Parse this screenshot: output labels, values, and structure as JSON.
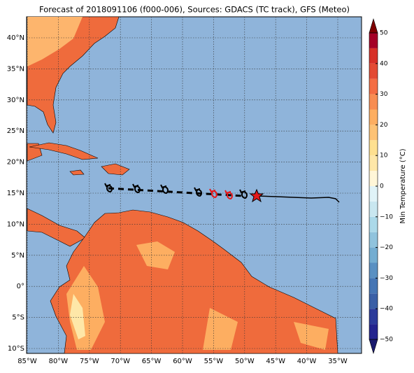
{
  "title": "Forecast of 2018091106 (f000-006), Sources: GDACS (TC track), GFS (Meteo)",
  "map": {
    "lon_ticks": [
      {
        "value": -85,
        "label": "85°W"
      },
      {
        "value": -80,
        "label": "80°W"
      },
      {
        "value": -75,
        "label": "75°W"
      },
      {
        "value": -70,
        "label": "70°W"
      },
      {
        "value": -65,
        "label": "65°W"
      },
      {
        "value": -60,
        "label": "60°W"
      },
      {
        "value": -55,
        "label": "55°W"
      },
      {
        "value": -50,
        "label": "50°W"
      },
      {
        "value": -45,
        "label": "45°W"
      },
      {
        "value": -40,
        "label": "40°W"
      },
      {
        "value": -35,
        "label": "35°W"
      }
    ],
    "lat_ticks": [
      {
        "value": 40,
        "label": "40°N"
      },
      {
        "value": 35,
        "label": "35°N"
      },
      {
        "value": 30,
        "label": "30°N"
      },
      {
        "value": 25,
        "label": "25°N"
      },
      {
        "value": 20,
        "label": "20°N"
      },
      {
        "value": 15,
        "label": "15°N"
      },
      {
        "value": 10,
        "label": "10°N"
      },
      {
        "value": 5,
        "label": "5°N"
      },
      {
        "value": 0,
        "label": "0°"
      },
      {
        "value": -5,
        "label": "5°S"
      },
      {
        "value": -10,
        "label": "10°S"
      }
    ],
    "grid": true
  },
  "colorbar": {
    "label": "Min Temperature (°C)",
    "ticks": [
      50,
      40,
      30,
      20,
      10,
      0,
      {
        "value": -10,
        "label": "−10"
      },
      {
        "value": -20,
        "label": "−20"
      },
      {
        "value": -30,
        "label": "−30"
      },
      {
        "value": -40,
        "label": "−40"
      },
      {
        "value": -50,
        "label": "−50"
      }
    ],
    "colors": [
      "#23238e",
      "#2b3a9a",
      "#3a5fa6",
      "#4575b4",
      "#5a90c2",
      "#74add1",
      "#90c3dd",
      "#abd9e9",
      "#c9e7f0",
      "#e0f3f8",
      "#fff6d8",
      "#fee7a8",
      "#fee090",
      "#fdc275",
      "#fdae61",
      "#f88d52",
      "#f46d43",
      "#e34a33",
      "#d73027",
      "#a50026"
    ],
    "over_color": "#7f0000",
    "under_color": "#1a1a6e"
  }
}
